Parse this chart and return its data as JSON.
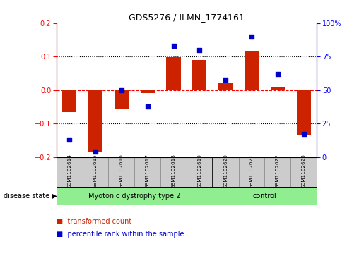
{
  "title": "GDS5276 / ILMN_1774161",
  "samples": [
    "GSM1102614",
    "GSM1102615",
    "GSM1102616",
    "GSM1102617",
    "GSM1102618",
    "GSM1102619",
    "GSM1102620",
    "GSM1102621",
    "GSM1102622",
    "GSM1102623"
  ],
  "transformed_count": [
    -0.065,
    -0.185,
    -0.055,
    -0.01,
    0.098,
    0.09,
    0.02,
    0.115,
    0.01,
    -0.135
  ],
  "percentile_rank": [
    13,
    4,
    50,
    38,
    83,
    80,
    58,
    90,
    62,
    17
  ],
  "groups": [
    {
      "label": "Myotonic dystrophy type 2",
      "start": 0,
      "end": 6,
      "color": "#90EE90"
    },
    {
      "label": "control",
      "start": 6,
      "end": 10,
      "color": "#90EE90"
    }
  ],
  "bar_color": "#CC2200",
  "dot_color": "#0000CC",
  "ylim_left": [
    -0.2,
    0.2
  ],
  "ylim_right": [
    0,
    100
  ],
  "yticks_left": [
    -0.2,
    -0.1,
    0.0,
    0.1,
    0.2
  ],
  "yticks_right": [
    0,
    25,
    50,
    75,
    100
  ],
  "dotted_lines": [
    -0.1,
    0.1
  ],
  "red_dashed": 0.0,
  "disease_state_label": "disease state",
  "legend_items": [
    {
      "label": "transformed count",
      "color": "#CC2200"
    },
    {
      "label": "percentile rank within the sample",
      "color": "#0000CC"
    }
  ],
  "group_divider": 5.5,
  "bar_width": 0.55
}
